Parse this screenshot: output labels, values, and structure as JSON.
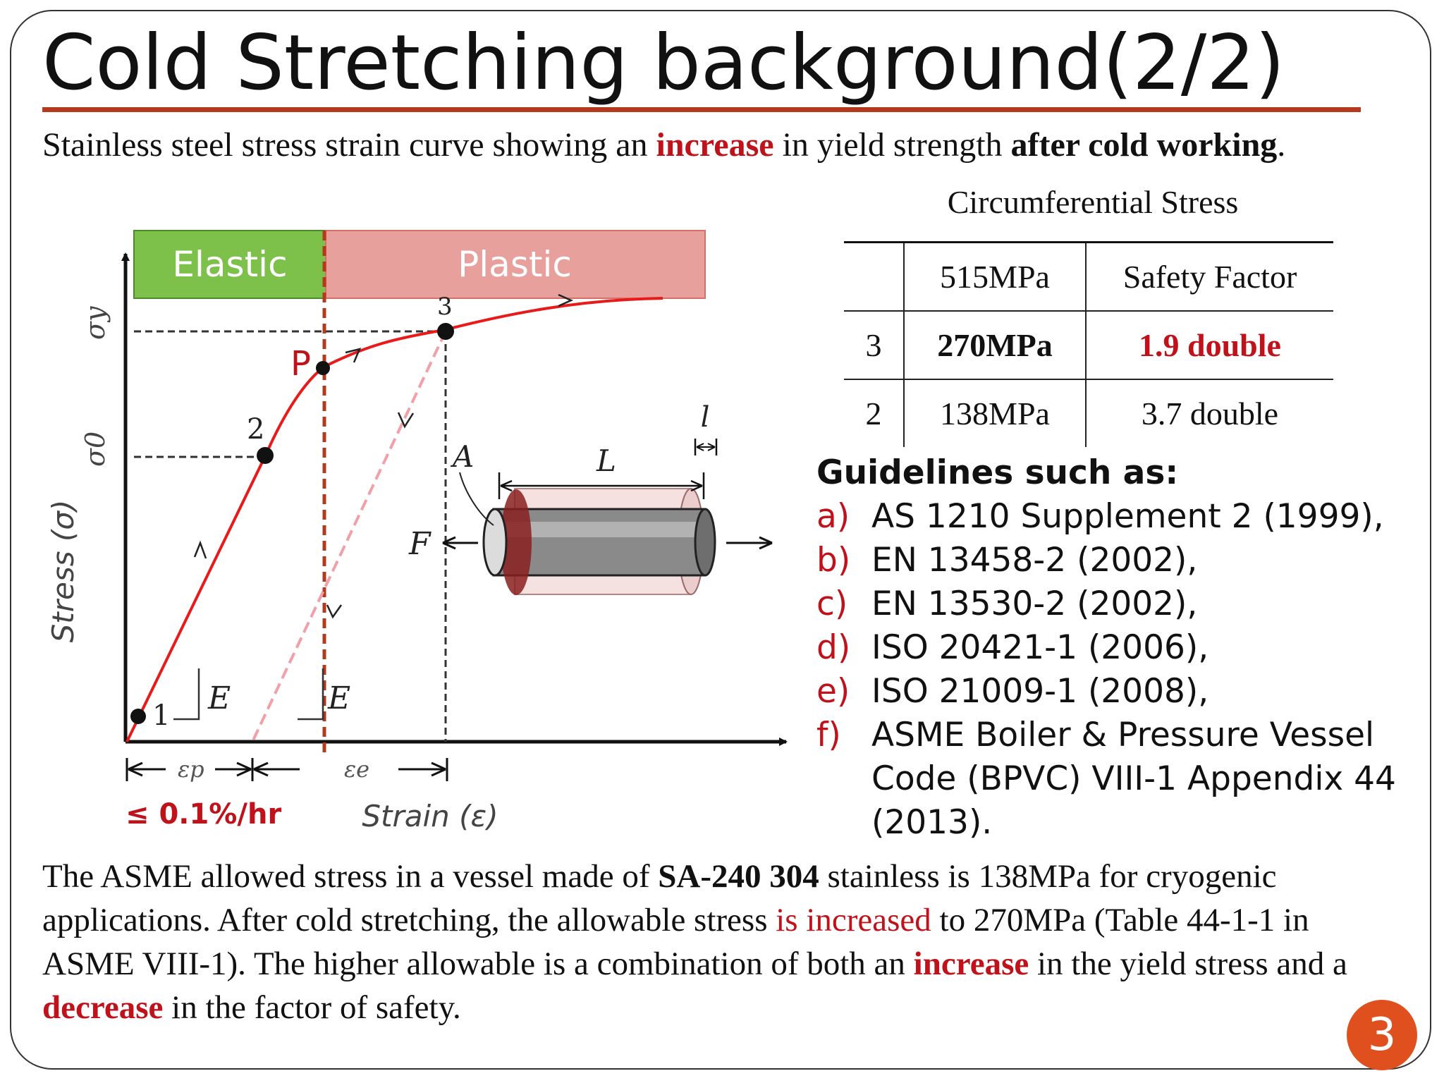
{
  "title": "Cold Stretching background(2/2)",
  "subtitle": {
    "t1": "Stainless steel stress strain curve showing an ",
    "t2": "increase",
    "t3": " in yield strength ",
    "t4": "after cold working",
    "t5": "."
  },
  "diagram": {
    "elastic_label": "Elastic",
    "plastic_label": "Plastic",
    "stress_axis": "Stress (σ)",
    "strain_axis": "Strain (ε)",
    "sigma_y": "σy",
    "sigma_0": "σ0",
    "point_1": "1",
    "point_2": "2",
    "point_3": "3",
    "point_p": "P",
    "modulus_1": "E",
    "modulus_2": "E",
    "eps_p": "εp",
    "eps_e": "εe",
    "creep_rate": "≤ 0.1%/hr",
    "area_label": "A",
    "length_label": "L",
    "elongation_label": "l",
    "force_label": "F",
    "colors": {
      "elastic": "#7dc04a",
      "plastic": "#e8a09c",
      "curve": "#e81a1a",
      "divider": "#b5391c"
    }
  },
  "table": {
    "caption": "Circumferential Stress",
    "header": [
      "",
      "515MPa",
      "Safety Factor"
    ],
    "rows": [
      [
        "3",
        "270MPa",
        "1.9 double"
      ],
      [
        "2",
        "138MPa",
        "3.7 double"
      ]
    ]
  },
  "guidelines": {
    "heading": "Guidelines such as:",
    "items": [
      {
        "letter": "a)",
        "text": "AS 1210 Supplement 2 (1999),"
      },
      {
        "letter": "b)",
        "text": "EN 13458-2 (2002),"
      },
      {
        "letter": "c)",
        "text": "EN 13530-2 (2002),"
      },
      {
        "letter": "d)",
        "text": "ISO 20421-1 (2006),"
      },
      {
        "letter": "e)",
        "text": "ISO 21009-1 (2008),"
      },
      {
        "letter": "f)",
        "text": "ASME Boiler & Pressure Vessel Code (BPVC) VIII-1 Appendix 44 (2013)."
      }
    ]
  },
  "paragraph": {
    "p1": "The ASME allowed stress in a vessel made of ",
    "p2": "SA-240 304",
    "p3": " stainless is 138MPa for cryogenic applications. After cold stretching, the allowable stress ",
    "p4": "is increased",
    "p5": " to 270MPa  (Table 44-1-1 in ASME VIII-1). The higher allowable is a combination of both an ",
    "p6": "increase",
    "p7": " in the yield stress and a ",
    "p8": "decrease",
    "p9": " in the factor of safety."
  },
  "page_number": "3"
}
